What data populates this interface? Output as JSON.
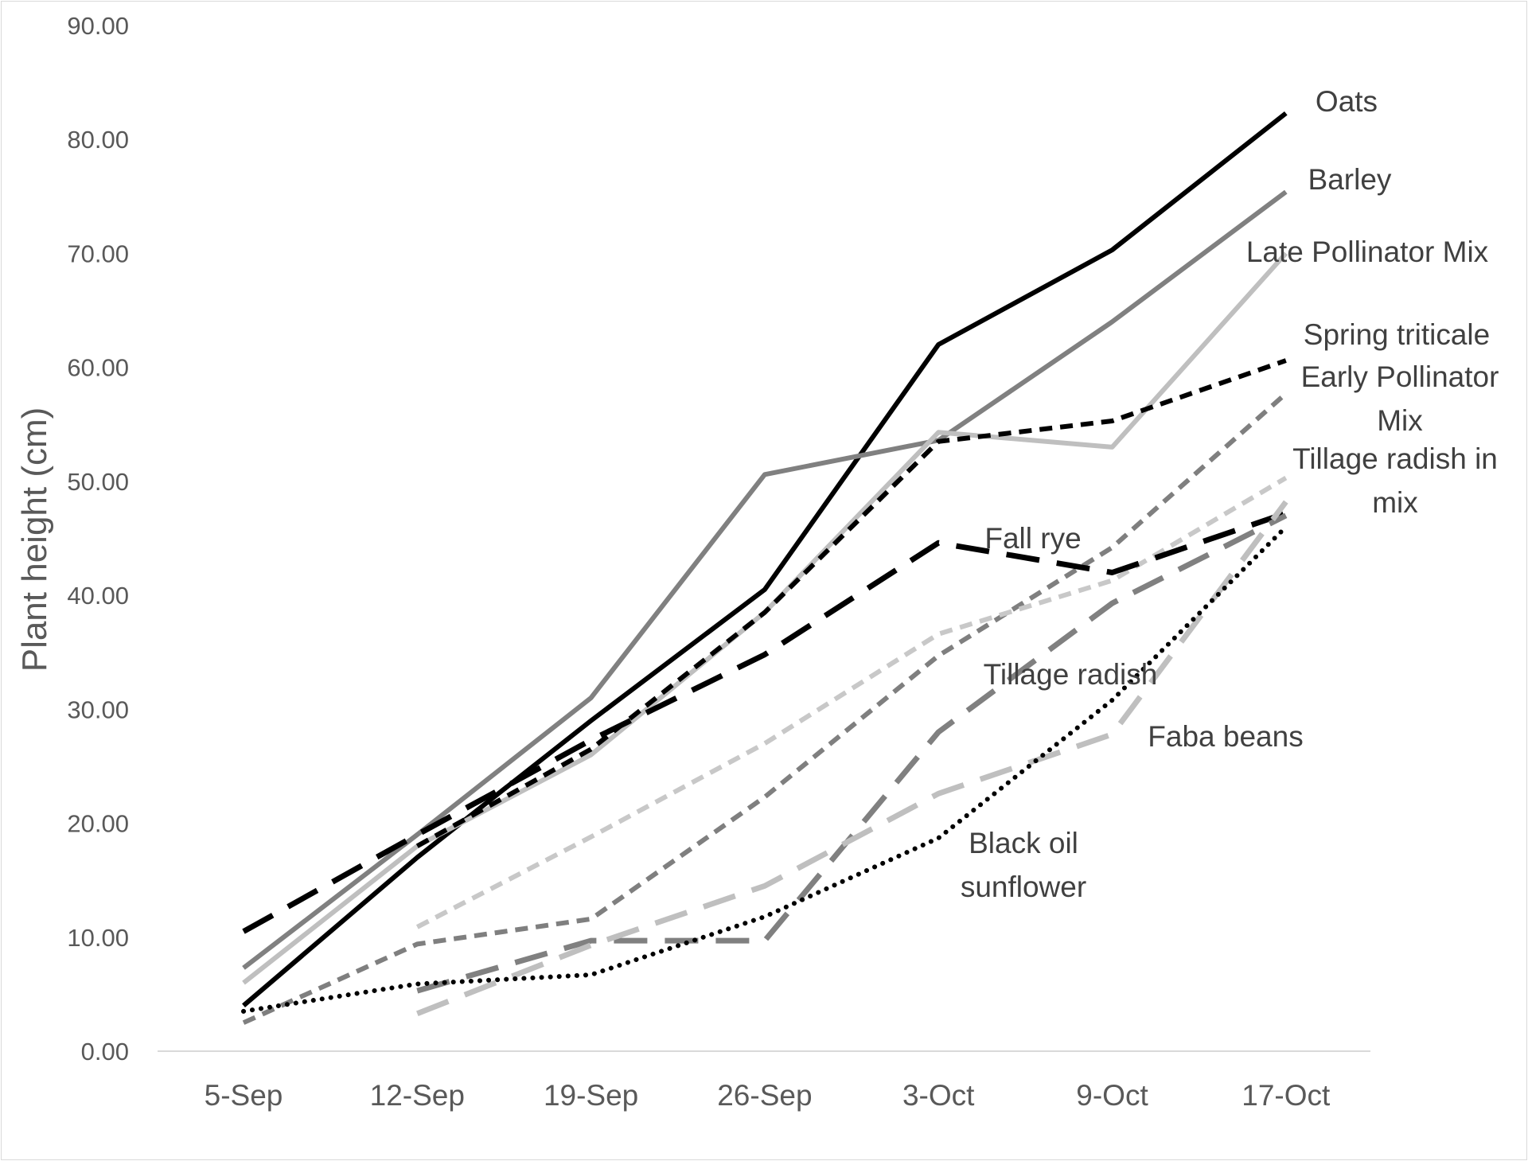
{
  "chart_data": {
    "type": "line",
    "title": "",
    "xlabel": "",
    "ylabel": "Plant height (cm)",
    "ylim": [
      0,
      90
    ],
    "ytick_step": 10,
    "ytick_format": "0.00",
    "grid": false,
    "legend": "labels placed next to line ends",
    "categories": [
      "5-Sep",
      "12-Sep",
      "19-Sep",
      "26-Sep",
      "3-Oct",
      "9-Oct",
      "17-Oct"
    ],
    "series": [
      {
        "name": "Oats",
        "values": [
          4.0,
          17.0,
          29.0,
          40.5,
          62.0,
          70.3,
          82.3
        ],
        "color": "#000000",
        "style": "solid"
      },
      {
        "name": "Barley",
        "values": [
          7.3,
          19.0,
          31.0,
          50.6,
          53.6,
          64.0,
          75.4
        ],
        "color": "#808080",
        "style": "solid"
      },
      {
        "name": "Late Pollinator Mix",
        "values": [
          6.0,
          18.0,
          26.0,
          38.5,
          54.3,
          53.0,
          70.0
        ],
        "color": "#bfbfbf",
        "style": "solid"
      },
      {
        "name": "Spring triticale",
        "values": [
          null,
          18.0,
          26.5,
          38.5,
          53.5,
          55.3,
          60.6
        ],
        "color": "#000000",
        "style": "dash-medium"
      },
      {
        "name": "Early Pollinator Mix",
        "values": [
          2.5,
          9.4,
          11.6,
          22.3,
          34.7,
          44.2,
          57.7
        ],
        "color": "#7f7f7f",
        "style": "dash-medium"
      },
      {
        "name": "Tillage radish in mix",
        "values": [
          null,
          10.9,
          18.8,
          27.0,
          36.6,
          41.3,
          50.3
        ],
        "color": "#c8c8c8",
        "style": "dash-medium"
      },
      {
        "name": "Fall rye",
        "values": [
          10.5,
          19.0,
          27.3,
          34.8,
          44.6,
          42.0,
          47.2
        ],
        "color": "#000000",
        "style": "dash-long"
      },
      {
        "name": "Tillage radish",
        "values": [
          null,
          5.3,
          9.7,
          9.7,
          28.0,
          39.3,
          47.0
        ],
        "color": "#808080",
        "style": "dash-long"
      },
      {
        "name": "Faba beans",
        "values": [
          null,
          3.3,
          9.3,
          14.5,
          22.6,
          27.8,
          48.2
        ],
        "color": "#bfbfbf",
        "style": "dash-long"
      },
      {
        "name": "Black oil sunflower",
        "values": [
          3.5,
          5.9,
          6.7,
          11.8,
          18.7,
          30.8,
          46.0
        ],
        "color": "#000000",
        "style": "dotted"
      }
    ],
    "labels": [
      {
        "series": "Oats",
        "lines": [
          "Oats"
        ]
      },
      {
        "series": "Barley",
        "lines": [
          "Barley"
        ]
      },
      {
        "series": "Late Pollinator Mix",
        "lines": [
          "Late Pollinator Mix"
        ]
      },
      {
        "series": "Spring triticale",
        "lines": [
          "Spring triticale"
        ]
      },
      {
        "series": "Early Pollinator Mix",
        "lines": [
          "Early Pollinator",
          "Mix"
        ]
      },
      {
        "series": "Tillage radish in mix",
        "lines": [
          "Tillage radish in",
          "mix"
        ]
      },
      {
        "series": "Fall rye",
        "lines": [
          "Fall rye"
        ]
      },
      {
        "series": "Tillage radish",
        "lines": [
          "Tillage radish"
        ]
      },
      {
        "series": "Faba beans",
        "lines": [
          "Faba beans"
        ]
      },
      {
        "series": "Black oil sunflower",
        "lines": [
          "Black oil",
          "sunflower"
        ]
      }
    ]
  }
}
